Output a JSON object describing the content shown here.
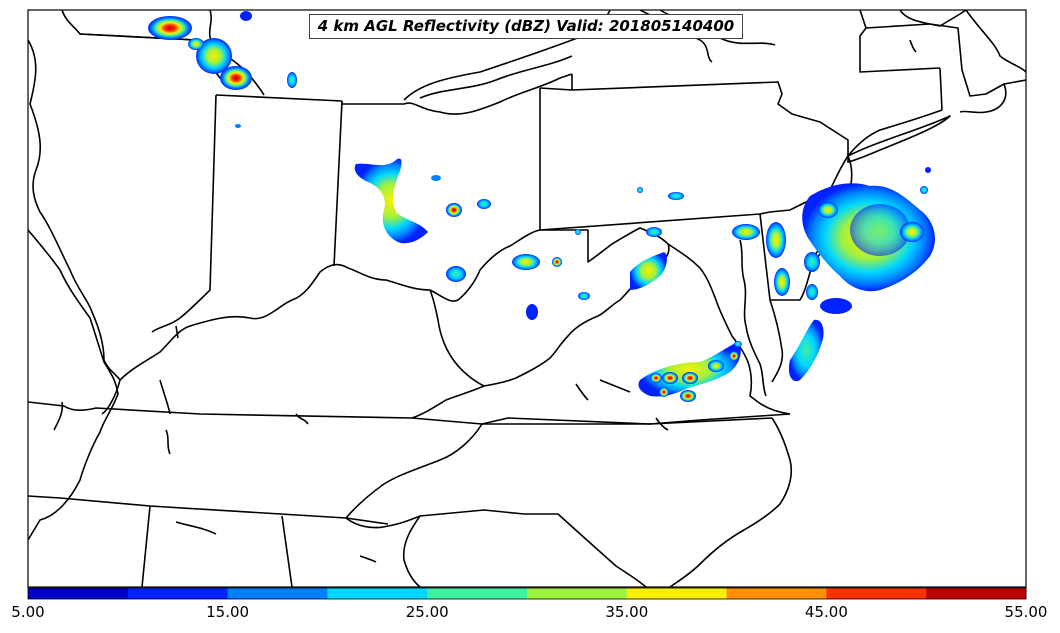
{
  "title": "4 km AGL Reflectivity (dBZ) Valid: 201805140400",
  "colorbar": {
    "colors": [
      "#0000c8",
      "#0022ff",
      "#0080ff",
      "#00d8ff",
      "#40f0a0",
      "#a0f040",
      "#f8f000",
      "#ff9000",
      "#ff3000",
      "#c00000"
    ],
    "ticks": [
      "5.00",
      "15.00",
      "25.00",
      "35.00",
      "45.00",
      "55.00"
    ]
  }
}
